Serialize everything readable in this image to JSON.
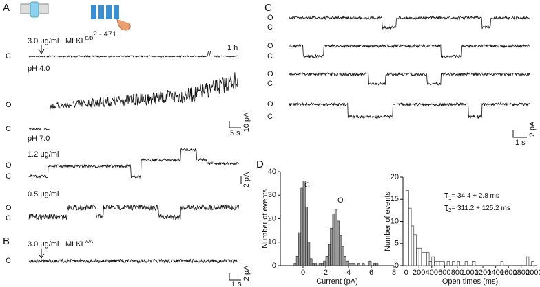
{
  "panels": {
    "A": {
      "label": "A",
      "construct": "2 - 471",
      "conc": "3.0 μg/ml",
      "reagent": "MLKL",
      "reagent_sup": "E/D",
      "closed": "C",
      "time": "1 h",
      "ph1": "pH 4.0",
      "ph2": "pH 7.0",
      "open2": "O",
      "closed2": "C",
      "scale_t": "5 s",
      "scale_i": "10 pA",
      "conc2": "1.2 μg/ml",
      "open3": "O",
      "closed3": "C",
      "scale_i2": "2 pA",
      "conc3": "0.5 μg/ml",
      "open4": "O",
      "closed4": "C"
    },
    "B": {
      "label": "B",
      "conc": "3.0 μg/ml",
      "reagent": "MLKL",
      "reagent_sup": "A/A",
      "closed": "C",
      "scale_t": "1 s",
      "scale_i": "2 pA"
    },
    "C": {
      "label": "C",
      "levels": [
        [
          "O",
          "C"
        ],
        [
          "O",
          "C"
        ],
        [
          "O",
          "C"
        ],
        [
          "O",
          "C"
        ]
      ],
      "scale_t": "1 s",
      "scale_i": "2 pA"
    },
    "D": {
      "label": "D"
    }
  },
  "chart_data": [
    {
      "type": "histogram",
      "ylabel": "Number of events",
      "xlabel": "Current (pA)",
      "color": "#999999",
      "annotations": [
        "C",
        "O"
      ],
      "bins": [
        -1,
        -0.8,
        -0.6,
        -0.4,
        -0.2,
        0,
        0.2,
        0.4,
        0.6,
        0.8,
        1,
        1.2,
        1.4,
        1.6,
        1.8,
        2,
        2.2,
        2.4,
        2.6,
        2.8,
        3,
        3.2,
        3.4,
        3.6,
        3.8,
        4,
        4.2,
        4.4,
        4.6,
        4.8,
        5,
        5.2,
        5.4,
        5.6,
        5.8,
        6,
        6.2,
        6.4,
        6.6,
        6.8,
        7
      ],
      "values": [
        0,
        1,
        4,
        14,
        33,
        36,
        25,
        10,
        3,
        1,
        1,
        0,
        1,
        1,
        2,
        4,
        9,
        16,
        22,
        24,
        19,
        13,
        8,
        4,
        2,
        1,
        1,
        1,
        0,
        1,
        0,
        1,
        0,
        0,
        2,
        0,
        1,
        1,
        0,
        0
      ],
      "xlim": [
        -2,
        8
      ],
      "xticks": [
        0,
        2,
        4,
        6,
        8
      ],
      "ylim": [
        0,
        40
      ],
      "yticks": [
        0,
        10,
        20,
        30,
        40
      ]
    },
    {
      "type": "histogram",
      "ylabel": "Number of events",
      "xlabel": "Open times (ms)",
      "color": "#ffffff",
      "tau": [
        {
          "symbol": "τ",
          "sub": "1",
          "text": "= 34.4 + 2.8 ms"
        },
        {
          "symbol": "τ",
          "sub": "2",
          "text": "= 311.2 + 125.2 ms"
        }
      ],
      "bins": [
        0,
        40,
        80,
        120,
        160,
        200,
        240,
        280,
        320,
        360,
        400,
        440,
        480,
        520,
        560,
        600,
        640,
        680,
        720,
        760,
        800,
        840,
        880,
        920,
        960,
        1000,
        1040,
        1080,
        1120,
        1160,
        1200,
        1240,
        1280,
        1320,
        1360,
        1400,
        1440,
        1480,
        1520,
        1560,
        1600,
        1640,
        1680,
        1720,
        1760,
        1800,
        1840,
        1880,
        1920,
        1960,
        2000
      ],
      "values": [
        17,
        13,
        9,
        7,
        4,
        4,
        3,
        3,
        3,
        1,
        2,
        1,
        1,
        1,
        1,
        0,
        1,
        0,
        1,
        0,
        1,
        0,
        0,
        1,
        0,
        0,
        1,
        0,
        0,
        0,
        0,
        0,
        0,
        0,
        0,
        0,
        0,
        1,
        0,
        0,
        0,
        0,
        0,
        0,
        0,
        0,
        0,
        2,
        0,
        1
      ],
      "xlim": [
        -50,
        2050
      ],
      "xticks": [
        0,
        200,
        400,
        600,
        800,
        1000,
        1200,
        1400,
        1600,
        1800,
        2000
      ],
      "ylim": [
        0,
        20
      ],
      "yticks": [
        0,
        5,
        10,
        15,
        20
      ]
    }
  ]
}
